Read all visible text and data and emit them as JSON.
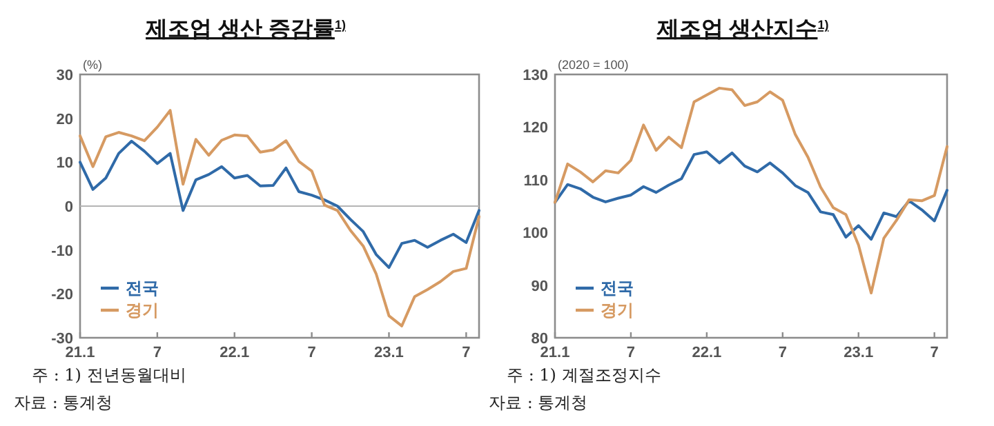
{
  "chart_data": [
    {
      "type": "line",
      "title": "제조업 생산 증감률$^{1)}$",
      "legend": "bottom left",
      "grid": false,
      "marker": "none",
      "line_style": "solid",
      "categories": [
        "21.1",
        null,
        null,
        null,
        null,
        null,
        "7",
        null,
        null,
        null,
        null,
        null,
        "22.1",
        null,
        null,
        null,
        null,
        null,
        "7",
        null,
        null,
        null,
        null,
        null,
        "23.1",
        null,
        null,
        null,
        null,
        null,
        "7",
        null
      ],
      "ylim": [
        -30,
        30
      ],
      "yticks": [
        -30,
        -20,
        -10,
        0,
        10,
        20,
        30
      ],
      "ref_lines": [
        {
          "axis": "y",
          "value": 0,
          "color": "#b4b4b4"
        }
      ],
      "series": [
        {
          "name": "전국",
          "color": "#2f6aa8",
          "values": [
            10,
            3.8,
            6.4,
            12,
            14.8,
            12.5,
            9.7,
            12,
            -1,
            6,
            7.2,
            9,
            6.4,
            7,
            4.6,
            4.7,
            8.7,
            3.3,
            2.5,
            1.4,
            0,
            -3,
            -5.8,
            -11,
            -14,
            -8.5,
            -7.8,
            -9.4,
            -7.8,
            -6.4,
            -8.3,
            -1
          ]
        },
        {
          "name": "경기",
          "color": "#d69a62",
          "values": [
            16,
            9,
            15.8,
            16.8,
            16,
            14.9,
            18,
            21.8,
            5,
            15.2,
            11.6,
            15,
            16.2,
            16,
            12.3,
            12.8,
            14.9,
            10.2,
            8,
            0.2,
            -1,
            -5.5,
            -9.1,
            -15.4,
            -25,
            -27.3,
            -20.6,
            -19,
            -17.2,
            -14.9,
            -14.2,
            -2.4
          ]
        }
      ],
      "annotations": [
        "(%)",
        "주 : 1) 전년동월대비",
        "자료 : 통계청"
      ]
    },
    {
      "type": "line",
      "title": "제조업 생산지수$^{1)}$",
      "legend": "bottom left",
      "grid": false,
      "marker": "none",
      "line_style": "solid",
      "categories": [
        "21.1",
        null,
        null,
        null,
        null,
        null,
        "7",
        null,
        null,
        null,
        null,
        null,
        "22.1",
        null,
        null,
        null,
        null,
        null,
        "7",
        null,
        null,
        null,
        null,
        null,
        "23.1",
        null,
        null,
        null,
        null,
        null,
        "7",
        null
      ],
      "ylim": [
        80,
        130
      ],
      "yticks": [
        80,
        90,
        100,
        110,
        120,
        130
      ],
      "series": [
        {
          "name": "전국",
          "color": "#2f6aa8",
          "values": [
            105.7,
            109.1,
            108.3,
            106.7,
            105.8,
            106.5,
            107.1,
            108.7,
            107.6,
            109,
            110.2,
            114.8,
            115.3,
            113.2,
            115.1,
            112.6,
            111.5,
            113.2,
            111.3,
            108.9,
            107.6,
            103.9,
            103.4,
            99.1,
            101.3,
            98.7,
            103.7,
            103,
            106,
            104.3,
            102.2,
            108
          ]
        },
        {
          "name": "경기",
          "color": "#d69a62",
          "values": [
            105.7,
            113,
            111.5,
            109.6,
            111.7,
            111.3,
            113.7,
            120.4,
            115.6,
            118.1,
            116.1,
            124.8,
            126.1,
            127.4,
            127.1,
            124.1,
            124.8,
            126.7,
            125.1,
            118.6,
            114.3,
            108.6,
            104.7,
            103.4,
            97.6,
            88.5,
            98.9,
            102.3,
            106.2,
            106,
            107,
            116.3
          ]
        }
      ],
      "annotations": [
        "(2020 = 100)",
        "주 : 1) 계절조정지수",
        "자료 : 통계청"
      ]
    }
  ]
}
